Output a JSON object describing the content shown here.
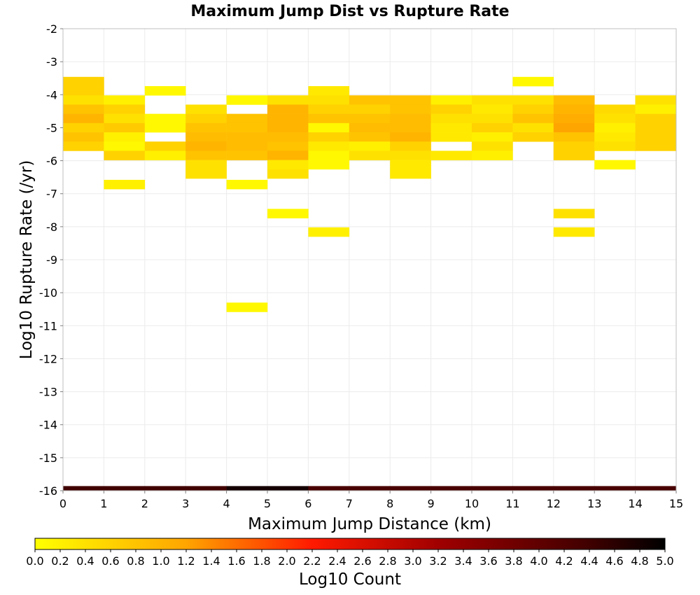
{
  "chart_data": {
    "type": "heatmap",
    "title": "Maximum Jump Dist vs Rupture Rate",
    "xlabel": "Maximum Jump Distance (km)",
    "ylabel": "Log10 Rupture Rate (/yr)",
    "xlim": [
      0,
      15
    ],
    "ylim": [
      -16,
      -2
    ],
    "x_ticks": [
      "0",
      "1",
      "2",
      "3",
      "4",
      "5",
      "6",
      "7",
      "8",
      "9",
      "10",
      "11",
      "12",
      "13",
      "14",
      "15"
    ],
    "y_ticks": [
      "-2",
      "-3",
      "-4",
      "-5",
      "-6",
      "-7",
      "-8",
      "-9",
      "-10",
      "-11",
      "-12",
      "-13",
      "-14",
      "-15",
      "-16"
    ],
    "grid": true,
    "x_bin_width": 1,
    "y_bin_height": 0.28,
    "cells": [
      [
        0,
        -3.6,
        0.6
      ],
      [
        0,
        -3.88,
        0.6
      ],
      [
        0,
        -4.16,
        0.4
      ],
      [
        0,
        -4.44,
        0.8
      ],
      [
        0,
        -4.72,
        1.0
      ],
      [
        0,
        -5.0,
        0.6
      ],
      [
        0,
        -5.28,
        0.8
      ],
      [
        0,
        -5.56,
        0.6
      ],
      [
        1,
        -4.16,
        0.2
      ],
      [
        1,
        -4.44,
        0.6
      ],
      [
        1,
        -4.72,
        0.4
      ],
      [
        1,
        -5.0,
        0.7
      ],
      [
        1,
        -5.28,
        0.2
      ],
      [
        1,
        -5.56,
        0.1
      ],
      [
        1,
        -5.84,
        0.6
      ],
      [
        1,
        -6.72,
        0.2
      ],
      [
        2,
        -3.88,
        0.1
      ],
      [
        2,
        -4.72,
        0.1
      ],
      [
        2,
        -5.0,
        0.1
      ],
      [
        2,
        -5.56,
        0.6
      ],
      [
        2,
        -5.84,
        0.2
      ],
      [
        3,
        -4.44,
        0.4
      ],
      [
        3,
        -4.72,
        0.6
      ],
      [
        3,
        -5.0,
        0.8
      ],
      [
        3,
        -5.28,
        0.9
      ],
      [
        3,
        -5.56,
        1.0
      ],
      [
        3,
        -5.84,
        0.8
      ],
      [
        3,
        -6.12,
        0.4
      ],
      [
        3,
        -6.4,
        0.4
      ],
      [
        4,
        -4.16,
        0.1
      ],
      [
        4,
        -4.72,
        0.8
      ],
      [
        4,
        -5.0,
        0.8
      ],
      [
        4,
        -5.28,
        0.9
      ],
      [
        4,
        -5.56,
        0.9
      ],
      [
        4,
        -5.84,
        0.8
      ],
      [
        4,
        -6.72,
        0.1
      ],
      [
        4,
        -10.44,
        0.1
      ],
      [
        5,
        -4.16,
        0.4
      ],
      [
        5,
        -4.44,
        1.0
      ],
      [
        5,
        -4.72,
        1.0
      ],
      [
        5,
        -5.0,
        1.0
      ],
      [
        5,
        -5.28,
        0.9
      ],
      [
        5,
        -5.56,
        0.8
      ],
      [
        5,
        -5.84,
        1.0
      ],
      [
        5,
        -6.12,
        0.3
      ],
      [
        5,
        -6.4,
        0.4
      ],
      [
        5,
        -7.6,
        0.1
      ],
      [
        6,
        -3.88,
        0.3
      ],
      [
        6,
        -4.16,
        0.4
      ],
      [
        6,
        -4.44,
        0.6
      ],
      [
        6,
        -4.72,
        0.8
      ],
      [
        6,
        -5.0,
        0.1
      ],
      [
        6,
        -5.28,
        0.6
      ],
      [
        6,
        -5.56,
        0.3
      ],
      [
        6,
        -5.84,
        0.1
      ],
      [
        6,
        -6.12,
        0.1
      ],
      [
        6,
        -8.16,
        0.2
      ],
      [
        7,
        -4.16,
        0.8
      ],
      [
        7,
        -4.44,
        0.6
      ],
      [
        7,
        -4.72,
        0.8
      ],
      [
        7,
        -5.0,
        0.9
      ],
      [
        7,
        -5.28,
        0.8
      ],
      [
        7,
        -5.56,
        0.2
      ],
      [
        7,
        -5.84,
        0.4
      ],
      [
        8,
        -4.16,
        0.8
      ],
      [
        8,
        -4.44,
        0.8
      ],
      [
        8,
        -4.72,
        0.9
      ],
      [
        8,
        -5.0,
        0.9
      ],
      [
        8,
        -5.28,
        1.0
      ],
      [
        8,
        -5.56,
        0.6
      ],
      [
        8,
        -5.84,
        0.4
      ],
      [
        8,
        -6.12,
        0.3
      ],
      [
        8,
        -6.4,
        0.3
      ],
      [
        9,
        -4.16,
        0.2
      ],
      [
        9,
        -4.44,
        0.6
      ],
      [
        9,
        -4.72,
        0.4
      ],
      [
        9,
        -5.0,
        0.3
      ],
      [
        9,
        -5.28,
        0.3
      ],
      [
        9,
        -5.84,
        0.3
      ],
      [
        10,
        -4.16,
        0.4
      ],
      [
        10,
        -4.44,
        0.3
      ],
      [
        10,
        -4.72,
        0.4
      ],
      [
        10,
        -5.0,
        0.6
      ],
      [
        10,
        -5.28,
        0.2
      ],
      [
        10,
        -5.56,
        0.4
      ],
      [
        10,
        -5.84,
        0.2
      ],
      [
        11,
        -3.6,
        0.1
      ],
      [
        11,
        -4.16,
        0.4
      ],
      [
        11,
        -4.44,
        0.6
      ],
      [
        11,
        -4.72,
        0.8
      ],
      [
        11,
        -5.0,
        0.4
      ],
      [
        11,
        -5.28,
        0.6
      ],
      [
        12,
        -4.16,
        0.9
      ],
      [
        12,
        -4.44,
        1.0
      ],
      [
        12,
        -4.72,
        1.1
      ],
      [
        12,
        -5.0,
        1.2
      ],
      [
        12,
        -5.28,
        0.8
      ],
      [
        12,
        -5.56,
        0.6
      ],
      [
        12,
        -5.84,
        0.6
      ],
      [
        12,
        -7.6,
        0.4
      ],
      [
        12,
        -8.16,
        0.3
      ],
      [
        13,
        -4.44,
        0.5
      ],
      [
        13,
        -4.72,
        0.4
      ],
      [
        13,
        -5.0,
        0.2
      ],
      [
        13,
        -5.28,
        0.3
      ],
      [
        13,
        -5.56,
        0.4
      ],
      [
        13,
        -6.12,
        0.1
      ],
      [
        14,
        -4.16,
        0.4
      ],
      [
        14,
        -4.44,
        0.2
      ],
      [
        14,
        -4.72,
        0.6
      ],
      [
        14,
        -5.0,
        0.6
      ],
      [
        14,
        -5.28,
        0.6
      ],
      [
        14,
        -5.56,
        0.6
      ]
    ],
    "bottom_row": {
      "y": -16,
      "values": [
        4.4,
        4.4,
        4.4,
        4.4,
        4.8,
        4.8,
        4.3,
        4.3,
        4.3,
        4.3,
        4.3,
        4.3,
        4.3,
        4.3,
        4.3
      ]
    },
    "colorbar": {
      "label": "Log10 Count",
      "min": 0,
      "max": 5,
      "ticks": [
        "0.0",
        "0.2",
        "0.4",
        "0.6",
        "0.8",
        "1.0",
        "1.2",
        "1.4",
        "1.6",
        "1.8",
        "2.0",
        "2.2",
        "2.4",
        "2.6",
        "2.8",
        "3.0",
        "3.2",
        "3.4",
        "3.6",
        "3.8",
        "4.0",
        "4.2",
        "4.4",
        "4.6",
        "4.8",
        "5.0"
      ],
      "colors": [
        [
          0,
          "#ffff00"
        ],
        [
          1.2,
          "#ffa500"
        ],
        [
          2.2,
          "#ff1a00"
        ],
        [
          3.2,
          "#a00000"
        ],
        [
          4.4,
          "#400000"
        ],
        [
          5.0,
          "#000000"
        ]
      ]
    },
    "grid_color": "#ebebeb",
    "frame_color": "#bfbfbf"
  }
}
